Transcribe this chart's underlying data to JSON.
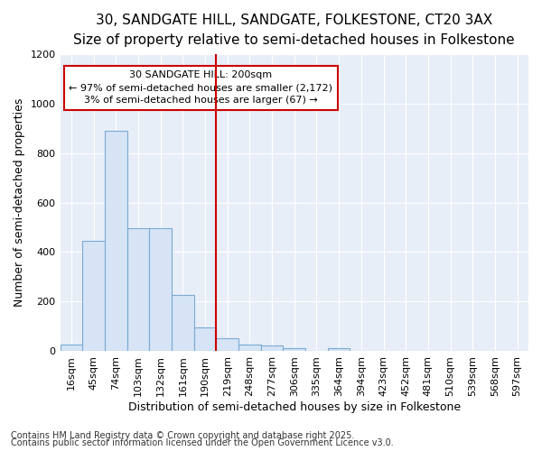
{
  "title1": "30, SANDGATE HILL, SANDGATE, FOLKESTONE, CT20 3AX",
  "title2": "Size of property relative to semi-detached houses in Folkestone",
  "xlabel": "Distribution of semi-detached houses by size in Folkestone",
  "ylabel": "Number of semi-detached properties",
  "categories": [
    "16sqm",
    "45sqm",
    "74sqm",
    "103sqm",
    "132sqm",
    "161sqm",
    "190sqm",
    "219sqm",
    "248sqm",
    "277sqm",
    "306sqm",
    "335sqm",
    "364sqm",
    "394sqm",
    "423sqm",
    "452sqm",
    "481sqm",
    "510sqm",
    "539sqm",
    "568sqm",
    "597sqm"
  ],
  "values": [
    25,
    445,
    890,
    495,
    495,
    225,
    95,
    50,
    25,
    20,
    10,
    0,
    10,
    0,
    0,
    0,
    0,
    0,
    0,
    0,
    0
  ],
  "bar_color": "#d6e4f5",
  "bar_edge_color": "#7aaad4",
  "vline_color": "#cc0000",
  "vline_x_idx": 7,
  "annotation_text": "30 SANDGATE HILL: 200sqm\n← 97% of semi-detached houses are smaller (2,172)\n3% of semi-detached houses are larger (67) →",
  "annotation_box_edgecolor": "#cc0000",
  "annotation_bg": "#ffffff",
  "ylim": [
    0,
    1200
  ],
  "yticks": [
    0,
    200,
    400,
    600,
    800,
    1000,
    1200
  ],
  "plot_bg_color": "#e8eef8",
  "grid_color": "#ffffff",
  "fig_bg_color": "#ffffff",
  "footer1": "Contains HM Land Registry data © Crown copyright and database right 2025.",
  "footer2": "Contains public sector information licensed under the Open Government Licence v3.0.",
  "title_fontsize": 11,
  "subtitle_fontsize": 9.5,
  "label_fontsize": 9,
  "tick_fontsize": 8,
  "annot_fontsize": 8,
  "footer_fontsize": 7
}
